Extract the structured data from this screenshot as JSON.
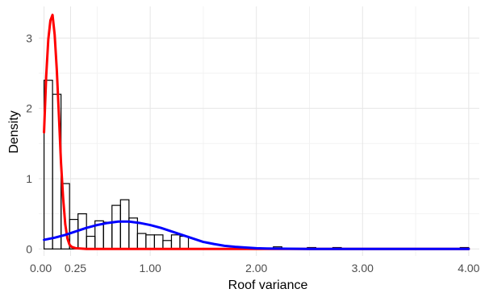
{
  "chart_data": {
    "type": "histogram",
    "title": "",
    "xlabel": "Roof variance",
    "ylabel": "Density",
    "xlim": [
      -0.05,
      4.1
    ],
    "ylim": [
      -0.1,
      3.45
    ],
    "x_ticks": [
      0.0,
      0.25,
      1.0,
      2.0,
      3.0,
      4.0
    ],
    "x_tick_labels": [
      "0.00",
      "0.25",
      "1.00",
      "2.00",
      "3.00",
      "4.00"
    ],
    "y_ticks": [
      0,
      1,
      2,
      3
    ],
    "y_tick_labels": [
      "0",
      "1",
      "2",
      "3"
    ],
    "grid": true,
    "legend": null,
    "bins": [
      {
        "x0": 0.0,
        "x1": 0.08,
        "value": 2.4
      },
      {
        "x0": 0.08,
        "x1": 0.16,
        "value": 2.2
      },
      {
        "x0": 0.16,
        "x1": 0.24,
        "value": 0.93
      },
      {
        "x0": 0.24,
        "x1": 0.32,
        "value": 0.42
      },
      {
        "x0": 0.32,
        "x1": 0.4,
        "value": 0.5
      },
      {
        "x0": 0.4,
        "x1": 0.48,
        "value": 0.18
      },
      {
        "x0": 0.48,
        "x1": 0.56,
        "value": 0.4
      },
      {
        "x0": 0.56,
        "x1": 0.64,
        "value": 0.38
      },
      {
        "x0": 0.64,
        "x1": 0.72,
        "value": 0.62
      },
      {
        "x0": 0.72,
        "x1": 0.8,
        "value": 0.7
      },
      {
        "x0": 0.8,
        "x1": 0.88,
        "value": 0.44
      },
      {
        "x0": 0.88,
        "x1": 0.96,
        "value": 0.22
      },
      {
        "x0": 0.96,
        "x1": 1.04,
        "value": 0.2
      },
      {
        "x0": 1.04,
        "x1": 1.12,
        "value": 0.2
      },
      {
        "x0": 1.12,
        "x1": 1.2,
        "value": 0.12
      },
      {
        "x0": 1.2,
        "x1": 1.28,
        "value": 0.2
      },
      {
        "x0": 1.28,
        "x1": 1.36,
        "value": 0.18
      },
      {
        "x0": 1.36,
        "x1": 1.44,
        "value": 0.0
      },
      {
        "x0": 1.44,
        "x1": 1.52,
        "value": 0.0
      },
      {
        "x0": 2.16,
        "x1": 2.24,
        "value": 0.03
      },
      {
        "x0": 2.48,
        "x1": 2.56,
        "value": 0.02
      },
      {
        "x0": 2.72,
        "x1": 2.8,
        "value": 0.02
      },
      {
        "x0": 3.92,
        "x1": 4.0,
        "value": 0.02
      }
    ],
    "series": [
      {
        "color": "#ff0000",
        "x": [
          0.0,
          0.02,
          0.04,
          0.06,
          0.08,
          0.1,
          0.12,
          0.14,
          0.16,
          0.18,
          0.2,
          0.22,
          0.24,
          0.26,
          0.3,
          0.4,
          0.6,
          1.0,
          2.0,
          3.0,
          4.0
        ],
        "y": [
          1.66,
          2.45,
          2.98,
          3.25,
          3.33,
          3.05,
          2.55,
          1.9,
          1.22,
          0.72,
          0.35,
          0.15,
          0.06,
          0.03,
          0.01,
          0.0,
          0.0,
          0.0,
          0.0,
          0.0,
          0.0
        ]
      },
      {
        "color": "#0000ff",
        "x": [
          0.0,
          0.1,
          0.2,
          0.3,
          0.4,
          0.5,
          0.6,
          0.7,
          0.8,
          0.9,
          1.0,
          1.1,
          1.2,
          1.3,
          1.4,
          1.5,
          1.6,
          1.7,
          1.8,
          1.9,
          2.0,
          2.1,
          2.2,
          2.4,
          3.0,
          4.0
        ],
        "y": [
          0.13,
          0.16,
          0.2,
          0.25,
          0.3,
          0.34,
          0.37,
          0.39,
          0.39,
          0.37,
          0.34,
          0.3,
          0.25,
          0.2,
          0.15,
          0.1,
          0.07,
          0.045,
          0.03,
          0.02,
          0.01,
          0.006,
          0.004,
          0.001,
          0.0,
          0.0
        ]
      }
    ]
  }
}
